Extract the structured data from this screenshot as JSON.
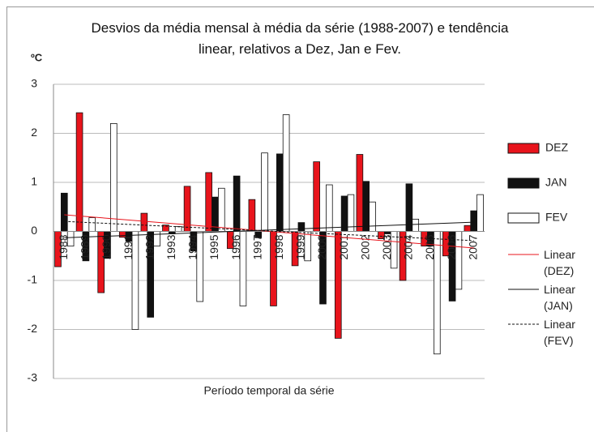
{
  "chart_data": {
    "type": "bar",
    "title": "Desvios da média mensal à média da série (1988-2007) e tendência linear, relativos a Dez, Jan e Fev.",
    "ylabel": "ºC",
    "xlabel": "Período temporal da série",
    "categories": [
      "1988",
      "1989",
      "1990",
      "1991",
      "1992",
      "1993",
      "1994",
      "1995",
      "1996",
      "1997",
      "1998",
      "1999",
      "2000",
      "2001",
      "2002",
      "2003",
      "2004",
      "2005",
      "2006",
      "2007"
    ],
    "series": [
      {
        "name": "DEZ",
        "color": "#e8141c",
        "values": [
          -0.72,
          2.42,
          -1.25,
          -0.12,
          0.37,
          0.13,
          0.92,
          1.2,
          -0.35,
          0.65,
          -1.52,
          -0.7,
          1.42,
          -2.18,
          1.57,
          -0.15,
          -1.0,
          -0.3,
          -0.5,
          0.12
        ]
      },
      {
        "name": "JAN",
        "color": "#111111",
        "values": [
          0.78,
          -0.6,
          -0.55,
          -0.2,
          -1.75,
          -0.05,
          -0.4,
          0.7,
          1.13,
          -0.13,
          1.58,
          0.18,
          -1.48,
          0.72,
          1.02,
          -0.05,
          0.97,
          -0.3,
          -1.42,
          0.42
        ]
      },
      {
        "name": "FEV",
        "color": "#ffffff",
        "values": [
          -0.3,
          0.28,
          2.2,
          -2.0,
          -0.3,
          0.1,
          -1.43,
          0.88,
          -1.52,
          1.6,
          2.38,
          -0.6,
          0.95,
          0.75,
          0.6,
          -0.75,
          0.25,
          -2.5,
          -1.18,
          0.75
        ]
      }
    ],
    "trendlines": [
      {
        "name": "Linear (DEZ)",
        "color": "#e8141c",
        "dashed": false
      },
      {
        "name": "Linear (JAN)",
        "color": "#111111",
        "dashed": false
      },
      {
        "name": "Linear (FEV)",
        "color": "#111111",
        "dashed": true
      }
    ],
    "ylim": [
      -3,
      3
    ],
    "yticks": [
      -3,
      -2,
      -1,
      0,
      1,
      2,
      3
    ],
    "grid": true
  }
}
